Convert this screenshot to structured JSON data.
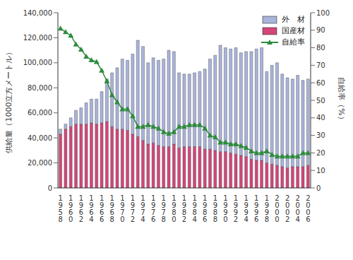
{
  "chart_data": {
    "type": "bar",
    "stacked": true,
    "legend": "upper right",
    "grid": false,
    "ylabel": "供給量（1000立方メートル）",
    "y2label": "自給率（%）",
    "categories": [
      "1958",
      null,
      "1960",
      null,
      "1962",
      null,
      "1964",
      null,
      "1966",
      null,
      "1968",
      null,
      "1970",
      null,
      "1972",
      null,
      "1974",
      null,
      "1976",
      null,
      "1978",
      null,
      "1980",
      null,
      "1982",
      null,
      "1984",
      null,
      "1986",
      null,
      "1988",
      null,
      "1990",
      null,
      "1992",
      null,
      "1994",
      null,
      "1996",
      null,
      "1998",
      null,
      "2000",
      null,
      "2002",
      null,
      "2004",
      null,
      "2006"
    ],
    "ylim": [
      0,
      140000
    ],
    "yticks": [
      0,
      {
        "value": 20000,
        "label": "20,000"
      },
      {
        "value": 40000,
        "label": "40,000"
      },
      {
        "value": 60000,
        "label": "60,000"
      },
      {
        "value": 80000,
        "label": "80,000"
      },
      {
        "value": 100000,
        "label": "100,000"
      },
      {
        "value": 120000,
        "label": "120,000"
      },
      {
        "value": 140000,
        "label": "140,000"
      }
    ],
    "y2lim": [
      0,
      100
    ],
    "y2ticks": [
      0,
      10,
      20,
      30,
      40,
      50,
      60,
      70,
      80,
      90,
      100
    ],
    "series": [
      {
        "name": "外　材",
        "type": "bar",
        "color": "#a9b3dc",
        "values": [
          4000,
          4000,
          7000,
          11000,
          13000,
          17000,
          19000,
          20000,
          25000,
          34000,
          43000,
          49000,
          56000,
          56000,
          64000,
          77000,
          75000,
          65000,
          68000,
          68000,
          70000,
          77000,
          74000,
          60000,
          58000,
          58000,
          59000,
          60000,
          64000,
          72000,
          76000,
          85000,
          83000,
          83000,
          85000,
          82000,
          84000,
          86000,
          89000,
          90000,
          73000,
          79000,
          82000,
          74000,
          72000,
          70000,
          73000,
          69000,
          69000
        ]
      },
      {
        "name": "国産材",
        "type": "bar",
        "color": "#d2467a",
        "values": [
          43000,
          47000,
          49000,
          51000,
          51000,
          51000,
          52000,
          51000,
          52000,
          53000,
          49000,
          47000,
          47000,
          46000,
          43000,
          41000,
          38000,
          35000,
          36000,
          34000,
          33000,
          33000,
          35000,
          32000,
          33000,
          33000,
          33000,
          33000,
          31000,
          31000,
          30000,
          29000,
          29000,
          28000,
          27000,
          26000,
          25000,
          23000,
          22000,
          22000,
          20000,
          19000,
          18000,
          17000,
          16000,
          17000,
          17000,
          17000,
          18000
        ]
      },
      {
        "name": "自給率",
        "type": "line",
        "axis": "y2",
        "color": "#2e8b3e",
        "marker": "triangle",
        "values": [
          91,
          89,
          87,
          82,
          79,
          75,
          73,
          72,
          67,
          61,
          53,
          49,
          45,
          45,
          41,
          35,
          35,
          36,
          35,
          34,
          32,
          31,
          32,
          35,
          35,
          36,
          36,
          36,
          34,
          30,
          29,
          26,
          26,
          25,
          25,
          24,
          23,
          21,
          20,
          20,
          21,
          19,
          18,
          18,
          18,
          18,
          18,
          20,
          20
        ]
      }
    ]
  }
}
